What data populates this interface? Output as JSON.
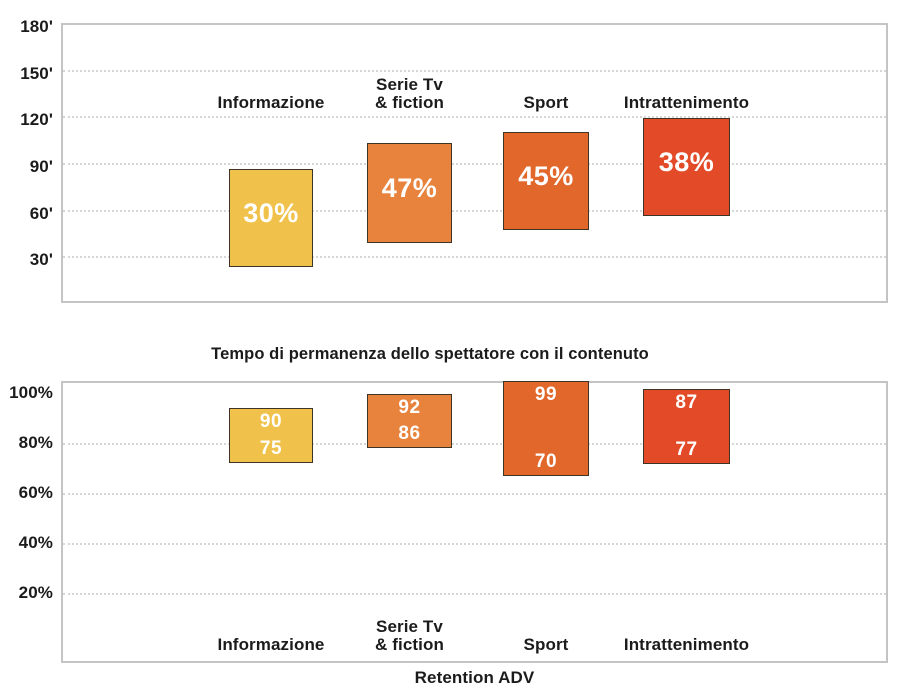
{
  "page": {
    "background": "#ffffff",
    "text_color": "#1b1b1b"
  },
  "palette": {
    "informazione": "#F0C24C",
    "serie_tv_fiction": "#E8833D",
    "sport": "#E2672B",
    "intrattenimento": "#E34B28",
    "bar_outline": "#3d3426",
    "grid": "#d6d6d6",
    "frame": "#c4c4c4",
    "value_text": "#ffffff"
  },
  "chart_data": [
    {
      "id": "tempo-permanenza-minuti",
      "type": "floating-bar",
      "title": "",
      "y_unit": "minutes",
      "ylim": [
        0,
        180
      ],
      "yticks": [
        {
          "value": 180,
          "label": "180'"
        },
        {
          "value": 150,
          "label": "150'"
        },
        {
          "value": 120,
          "label": "120'"
        },
        {
          "value": 90,
          "label": "90'"
        },
        {
          "value": 60,
          "label": "60'"
        },
        {
          "value": 30,
          "label": "30'"
        }
      ],
      "grid_ticks": [
        150,
        120,
        90,
        60,
        30
      ],
      "grid_style": "dotted-horizontal",
      "category_position": "above-bars",
      "bars": [
        {
          "category": "Informazione",
          "label": "30%",
          "bar_span": [
            23,
            86
          ],
          "color": "#F0C24C"
        },
        {
          "category": "Serie Tv\n& fiction",
          "label": "47%",
          "bar_span": [
            39,
            103
          ],
          "color": "#E8833D"
        },
        {
          "category": "Sport",
          "label": "45%",
          "bar_span": [
            47,
            110
          ],
          "color": "#E2672B"
        },
        {
          "category": "Intrattenimento",
          "label": "38%",
          "bar_span": [
            56,
            119
          ],
          "color": "#E34B28"
        }
      ]
    },
    {
      "id": "retention-adv",
      "type": "floating-bar",
      "title": "Tempo di permanenza dello spettatore con il contenuto",
      "xlabel": "Retention ADV",
      "y_unit": "percent",
      "ylim": [
        -8,
        105
      ],
      "yticks": [
        {
          "value": 100,
          "label": "100%"
        },
        {
          "value": 80,
          "label": "80%"
        },
        {
          "value": 60,
          "label": "60%"
        },
        {
          "value": 40,
          "label": "40%"
        },
        {
          "value": 20,
          "label": "20%"
        }
      ],
      "grid_ticks": [
        80,
        60,
        40,
        20
      ],
      "grid_style": "dotted-horizontal",
      "category_position": "below-bars",
      "bars": [
        {
          "category": "Informazione",
          "values": [
            90,
            75
          ],
          "bar_span": [
            72,
            94
          ],
          "color": "#F0C24C"
        },
        {
          "category": "Serie Tv\n& fiction",
          "values": [
            92,
            86
          ],
          "bar_span": [
            78,
            99.5
          ],
          "color": "#E8833D"
        },
        {
          "category": "Sport",
          "values": [
            99,
            70
          ],
          "bar_span": [
            66.5,
            104.5
          ],
          "color": "#E2672B"
        },
        {
          "category": "Intrattenimento",
          "values": [
            87,
            77
          ],
          "bar_span": [
            71.5,
            101.5
          ],
          "color": "#E34B28"
        }
      ]
    }
  ]
}
